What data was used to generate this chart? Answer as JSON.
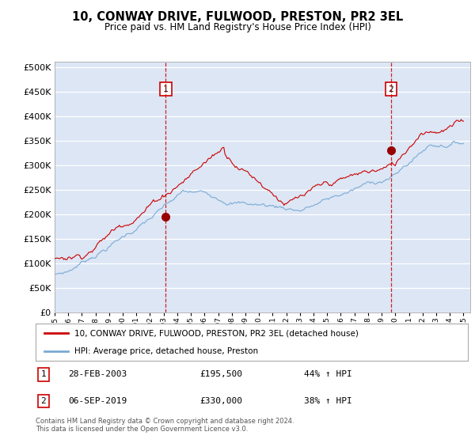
{
  "title": "10, CONWAY DRIVE, FULWOOD, PRESTON, PR2 3EL",
  "subtitle": "Price paid vs. HM Land Registry's House Price Index (HPI)",
  "background_color": "#dce6f5",
  "plot_bg_color": "#dce6f5",
  "red_line_color": "#cc0000",
  "blue_line_color": "#7baad4",
  "t1_year": 2003.16,
  "t1_price": 195500,
  "t2_year": 2019.68,
  "t2_price": 330000,
  "yticks": [
    0,
    50000,
    100000,
    150000,
    200000,
    250000,
    300000,
    350000,
    400000,
    450000,
    500000
  ],
  "legend1": "10, CONWAY DRIVE, FULWOOD, PRESTON, PR2 3EL (detached house)",
  "legend2": "HPI: Average price, detached house, Preston",
  "footnote": "Contains HM Land Registry data © Crown copyright and database right 2024.\nThis data is licensed under the Open Government Licence v3.0."
}
